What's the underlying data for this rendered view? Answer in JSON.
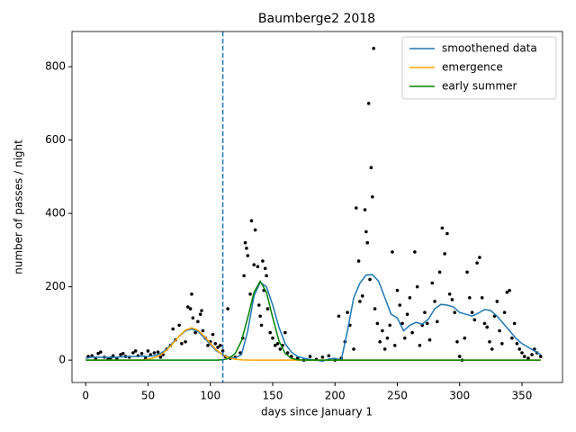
{
  "chart_data": {
    "type": "line",
    "title": "Baumberge2 2018",
    "x_label": "days since January 1",
    "y_label": "number of passes / night",
    "xlim": [
      -11,
      382.5
    ],
    "ylim": [
      -61,
      896
    ],
    "xticks": [
      0,
      50,
      100,
      150,
      200,
      250,
      300,
      350
    ],
    "yticks": [
      0,
      200,
      400,
      600,
      800
    ],
    "legend": "upper right",
    "vline": {
      "value": 110,
      "color": "#1f77b4"
    },
    "x": [
      0,
      5,
      10,
      15,
      20,
      25,
      30,
      35,
      40,
      45,
      50,
      55,
      60,
      65,
      70,
      75,
      80,
      85,
      90,
      95,
      100,
      105,
      110,
      115,
      120,
      125,
      130,
      135,
      140,
      145,
      150,
      155,
      160,
      165,
      170,
      175,
      180,
      185,
      190,
      195,
      200,
      205,
      210,
      215,
      220,
      225,
      230,
      235,
      240,
      245,
      250,
      255,
      260,
      265,
      270,
      275,
      280,
      285,
      290,
      295,
      300,
      305,
      310,
      315,
      320,
      325,
      330,
      335,
      340,
      345,
      350,
      355,
      360,
      365
    ],
    "series": [
      {
        "name": "smoothened data",
        "color": "#1f77b4",
        "values": [
          5,
          8,
          8,
          8,
          7,
          8,
          9,
          10,
          10,
          11,
          10,
          12,
          18,
          30,
          48,
          65,
          80,
          85,
          78,
          62,
          42,
          25,
          15,
          8,
          6,
          15,
          80,
          175,
          212,
          200,
          150,
          90,
          45,
          22,
          10,
          5,
          2,
          0,
          -3,
          3,
          5,
          0,
          80,
          170,
          210,
          232,
          233,
          215,
          170,
          125,
          115,
          80,
          95,
          103,
          98,
          112,
          140,
          152,
          150,
          145,
          130,
          125,
          120,
          128,
          138,
          135,
          120,
          100,
          80,
          60,
          45,
          35,
          25,
          15
        ]
      },
      {
        "name": "emergence",
        "color": "#ffa500",
        "values": [
          0,
          0,
          0,
          0,
          0,
          0,
          0,
          0,
          0.2,
          0.8,
          2.5,
          6.4,
          14.3,
          27.5,
          45.8,
          65.7,
          81.8,
          88,
          81.8,
          65.7,
          45.8,
          27.5,
          14.3,
          6.4,
          2.5,
          0.8,
          0.2,
          0,
          0,
          0,
          0,
          0,
          0,
          0,
          0,
          0,
          0,
          0,
          0,
          0,
          0,
          0,
          0,
          0,
          0,
          0,
          0,
          0,
          0,
          0,
          0,
          0,
          0,
          0,
          0,
          0,
          0,
          0,
          0,
          0,
          0,
          0,
          0,
          0,
          0,
          0,
          0,
          0,
          0,
          0,
          0,
          0,
          0,
          0
        ]
      },
      {
        "name": "early summer",
        "color": "#008000",
        "values": [
          0,
          0,
          0,
          0,
          0,
          0,
          0,
          0,
          0,
          0,
          0,
          0,
          0,
          0,
          0,
          0,
          0,
          0,
          0,
          0,
          0,
          0.1,
          1,
          4.8,
          18.3,
          53,
          116,
          185,
          215,
          185,
          116,
          53,
          18.3,
          4.8,
          1,
          0.1,
          0,
          0,
          0,
          0,
          0,
          0,
          0,
          0,
          0,
          0,
          0,
          0,
          0,
          0,
          0,
          0,
          0,
          0,
          0,
          0,
          0,
          0,
          0,
          0,
          0,
          0,
          0,
          0,
          0,
          0,
          0,
          0,
          0,
          0,
          0,
          0,
          0,
          0
        ]
      }
    ],
    "points": {
      "color": "#000000",
      "x": [
        2,
        5,
        8,
        10,
        12,
        15,
        18,
        20,
        22,
        25,
        28,
        30,
        32,
        35,
        38,
        40,
        42,
        45,
        48,
        50,
        52,
        55,
        58,
        60,
        62,
        65,
        68,
        70,
        72,
        75,
        77,
        80,
        82,
        84,
        85,
        86,
        88,
        90,
        92,
        93,
        94,
        96,
        98,
        100,
        102,
        104,
        106,
        108,
        110,
        112,
        114,
        116,
        120,
        124,
        126,
        127,
        128,
        129,
        130,
        132,
        133,
        135,
        136,
        138,
        139,
        140,
        141,
        142,
        143,
        144,
        145,
        146,
        148,
        150,
        152,
        154,
        156,
        158,
        160,
        162,
        165,
        170,
        175,
        180,
        185,
        190,
        195,
        200,
        203,
        205,
        208,
        210,
        212,
        215,
        217,
        219,
        220,
        222,
        224,
        225,
        226,
        227,
        228,
        229,
        230,
        231,
        232,
        234,
        236,
        238,
        240,
        242,
        244,
        246,
        248,
        250,
        252,
        254,
        256,
        258,
        260,
        262,
        264,
        266,
        268,
        270,
        272,
        274,
        276,
        278,
        280,
        282,
        284,
        286,
        288,
        290,
        292,
        294,
        296,
        298,
        300,
        302,
        304,
        306,
        308,
        310,
        312,
        314,
        316,
        318,
        320,
        322,
        324,
        326,
        328,
        330,
        332,
        334,
        336,
        338,
        340,
        342,
        344,
        346,
        348,
        350,
        352,
        355,
        358,
        360,
        362,
        365
      ],
      "values": [
        10,
        12,
        5,
        18,
        22,
        8,
        3,
        6,
        12,
        4,
        15,
        18,
        10,
        8,
        20,
        25,
        12,
        18,
        5,
        25,
        15,
        20,
        22,
        8,
        15,
        30,
        40,
        85,
        55,
        95,
        45,
        50,
        145,
        140,
        180,
        115,
        75,
        105,
        125,
        135,
        80,
        60,
        40,
        50,
        70,
        45,
        35,
        40,
        25,
        10,
        140,
        5,
        8,
        20,
        60,
        230,
        320,
        305,
        285,
        180,
        380,
        260,
        355,
        255,
        150,
        120,
        95,
        270,
        190,
        250,
        230,
        140,
        75,
        60,
        40,
        45,
        30,
        40,
        75,
        20,
        10,
        5,
        0,
        10,
        2,
        8,
        12,
        0,
        120,
        5,
        50,
        130,
        95,
        30,
        415,
        270,
        160,
        175,
        410,
        350,
        320,
        700,
        220,
        525,
        445,
        850,
        140,
        100,
        50,
        80,
        30,
        60,
        95,
        295,
        40,
        190,
        150,
        100,
        60,
        125,
        170,
        75,
        295,
        200,
        40,
        95,
        130,
        100,
        55,
        210,
        160,
        105,
        240,
        360,
        290,
        345,
        180,
        165,
        130,
        50,
        10,
        0,
        60,
        240,
        170,
        130,
        110,
        265,
        280,
        170,
        100,
        90,
        50,
        30,
        120,
        160,
        80,
        45,
        130,
        185,
        190,
        60,
        100,
        45,
        30,
        20,
        10,
        5,
        15,
        30,
        20,
        10
      ]
    }
  }
}
